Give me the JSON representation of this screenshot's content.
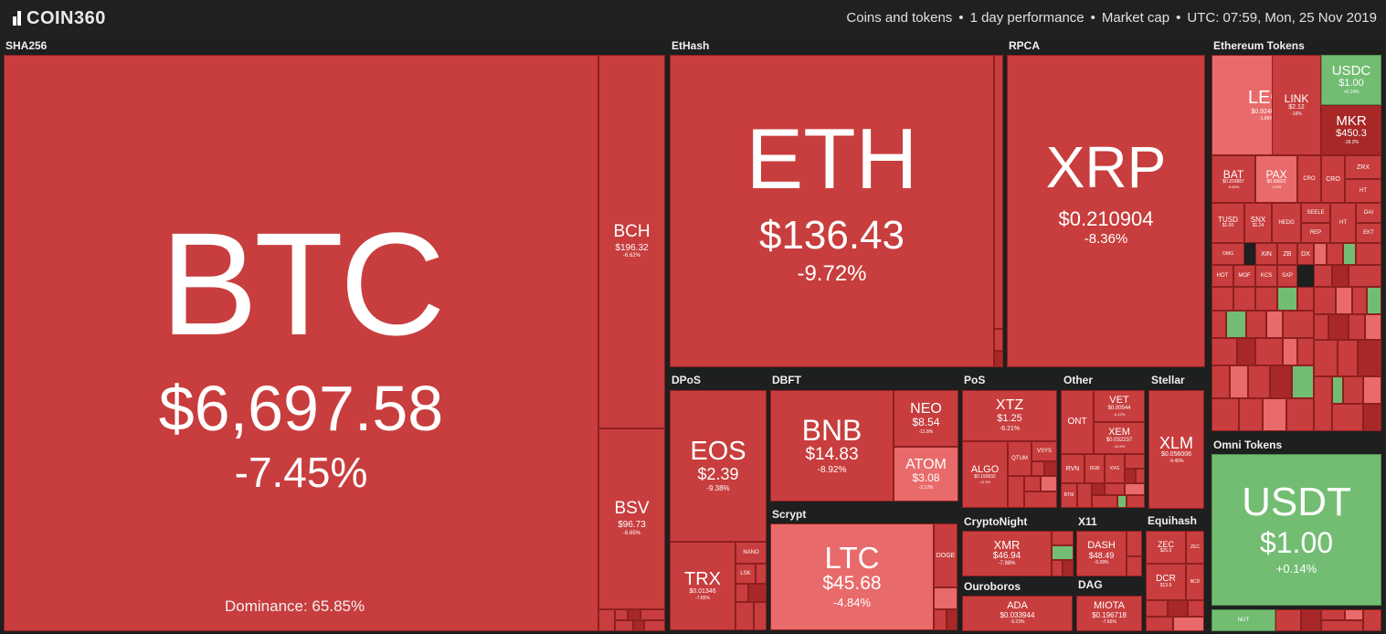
{
  "header": {
    "logo": "COIN360",
    "menu": [
      "Coins and tokens",
      "1 day performance",
      "Market cap"
    ],
    "time": "UTC: 07:59, Mon, 25 Nov 2019"
  },
  "groups": {
    "sha256": "SHA256",
    "ethash": "EtHash",
    "rpca": "RPCA",
    "eth_tokens": "Ethereum Tokens",
    "dpos": "DPoS",
    "dbft": "DBFT",
    "pos": "PoS",
    "other": "Other",
    "stellar": "Stellar",
    "scrypt": "Scrypt",
    "cryptonight": "CryptoNight",
    "x11": "X11",
    "equihash": "Equihash",
    "ouroboros": "Ouroboros",
    "dag": "DAG",
    "omni": "Omni Tokens"
  },
  "dominance": "Dominance: 65.85%",
  "coins": {
    "btc": {
      "sym": "BTC",
      "price": "$6,697.58",
      "chg": "-7.45%"
    },
    "bch": {
      "sym": "BCH",
      "price": "$196.32",
      "chg": "-6.62%"
    },
    "bsv": {
      "sym": "BSV",
      "price": "$96.73",
      "chg": "-6.65%"
    },
    "eth": {
      "sym": "ETH",
      "price": "$136.43",
      "chg": "-9.72%"
    },
    "xrp": {
      "sym": "XRP",
      "price": "$0.210904",
      "chg": "-8.36%"
    },
    "leo": {
      "sym": "LEO",
      "price": "$0.924007",
      "chg": "-1.86%"
    },
    "link": {
      "sym": "LINK",
      "price": "$2.12",
      "chg": "-16%"
    },
    "usdc": {
      "sym": "USDC",
      "price": "$1.00",
      "chg": "+0.14%"
    },
    "mkr": {
      "sym": "MKR",
      "price": "$450.3",
      "chg": "-18.2%"
    },
    "bat": {
      "sym": "BAT",
      "price": "$0.203887",
      "chg": "-9.83%"
    },
    "pax": {
      "sym": "PAX",
      "price": "$0.99822",
      "chg": "-0.2%"
    },
    "tusd": {
      "sym": "TUSD",
      "price": "$1.00",
      "chg": ""
    },
    "snx": {
      "sym": "SNX",
      "price": "$1.24",
      "chg": ""
    },
    "eos": {
      "sym": "EOS",
      "price": "$2.39",
      "chg": "-9.38%"
    },
    "trx": {
      "sym": "TRX",
      "price": "$0.01346",
      "chg": "-7.85%"
    },
    "bnb": {
      "sym": "BNB",
      "price": "$14.83",
      "chg": "-8.92%"
    },
    "neo": {
      "sym": "NEO",
      "price": "$8.54",
      "chg": "-11.8%"
    },
    "atom": {
      "sym": "ATOM",
      "price": "$3.08",
      "chg": "-2.12%"
    },
    "xtz": {
      "sym": "XTZ",
      "price": "$1.25",
      "chg": "-6.21%"
    },
    "algo": {
      "sym": "ALGO",
      "price": "$0.193632",
      "chg": "-11.3%"
    },
    "ont": {
      "sym": "ONT",
      "price": "",
      "chg": ""
    },
    "vet": {
      "sym": "VET",
      "price": "$0.00544",
      "chg": "-6.12%"
    },
    "xem": {
      "sym": "XEM",
      "price": "$0.032237",
      "chg": "-10.9%"
    },
    "xlm": {
      "sym": "XLM",
      "price": "$0.056006",
      "chg": "-9.45%"
    },
    "ltc": {
      "sym": "LTC",
      "price": "$45.68",
      "chg": "-4.84%"
    },
    "doge": {
      "sym": "DOGE",
      "price": "",
      "chg": ""
    },
    "xmr": {
      "sym": "XMR",
      "price": "$46.94",
      "chg": "-7.98%"
    },
    "dash": {
      "sym": "DASH",
      "price": "$48.49",
      "chg": "-9.28%"
    },
    "zec": {
      "sym": "ZEC",
      "price": "$25.9",
      "chg": ""
    },
    "dcr": {
      "sym": "DCR",
      "price": "$13.9",
      "chg": ""
    },
    "ada": {
      "sym": "ADA",
      "price": "$0.033944",
      "chg": "-9.23%"
    },
    "miota": {
      "sym": "MIOTA",
      "price": "$0.196718",
      "chg": "-7.66%"
    },
    "usdt": {
      "sym": "USDT",
      "price": "$1.00",
      "chg": "+0.14%"
    }
  },
  "small_labels": {
    "nano": "NANO",
    "lsk": "LSK",
    "qtum": "QTUM",
    "vsys": "VSYS",
    "rvn": "RVN",
    "dgb": "DGB",
    "xvg": "XVG",
    "btm": "BTM",
    "hedg": "HEDG",
    "cro": "CRO",
    "seele": "SEELE",
    "rep": "REP",
    "zrx": "ZRX",
    "ht": "HT",
    "dai": "DAI",
    "ekt": "EKT",
    "omg": "OMG",
    "xin": "XIN",
    "zb": "ZB",
    "dx": "DX",
    "hot": "HOT",
    "mof": "MOF",
    "kcs": "KCS",
    "sxp": "SXP",
    "bcd": "BCD",
    "nut": "NUT"
  },
  "colors": {
    "down": "#c83d3d",
    "down_light": "#e96a6a",
    "up": "#72bd72",
    "background": "#1e1f1f"
  }
}
